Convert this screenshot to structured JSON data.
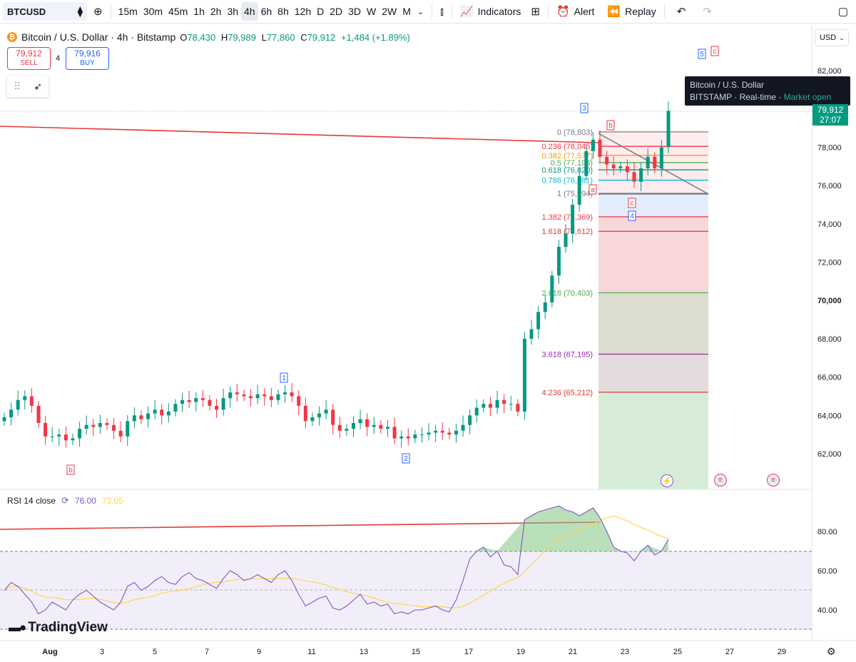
{
  "toolbar": {
    "symbol": "BTCUSD",
    "timeframes": [
      "15m",
      "30m",
      "45m",
      "1h",
      "2h",
      "3h",
      "4h",
      "6h",
      "8h",
      "12h",
      "D",
      "2D",
      "3D",
      "W",
      "2W",
      "M"
    ],
    "active_timeframe": "4h",
    "indicators_label": "Indicators",
    "alert_label": "Alert",
    "replay_label": "Replay",
    "icons": [
      "diamond-icon",
      "plus-circle-icon",
      "chevron-down-icon",
      "candles-icon",
      "indicators-icon",
      "layout-grid-icon",
      "alert-clock-icon",
      "replay-icon",
      "undo-icon",
      "redo-icon",
      "square-icon"
    ]
  },
  "legend": {
    "title": "Bitcoin / U.S. Dollar · 4h · Bitstamp",
    "o_label": "O",
    "o": "78,430",
    "h_label": "H",
    "h": "79,989",
    "l_label": "L",
    "l": "77,860",
    "c_label": "C",
    "c": "79,912",
    "change": "+1,484 (+1.89%)"
  },
  "trade": {
    "sell_price": "79,912",
    "sell_label": "SELL",
    "spread": "4",
    "buy_price": "79,916",
    "buy_label": "BUY"
  },
  "currency": "USD",
  "tooltip": {
    "title": "Bitcoin / U.S. Dollar",
    "exchange": "BITSTAMP",
    "feed": "Real-time",
    "status": "Market open"
  },
  "last_price": {
    "price": "79,912",
    "countdown": "27:07"
  },
  "rsi": {
    "label": "RSI 14 close",
    "value1": "76.00",
    "value2": "73.05"
  },
  "brand": "TradingView",
  "chart_data": {
    "type": "candlestick",
    "price_axis": [
      "82,000",
      "80,000",
      "78,000",
      "76,000",
      "74,000",
      "72,000",
      "70,000",
      "68,000",
      "66,000",
      "64,000",
      "62,000"
    ],
    "price_range": [
      60500,
      82000
    ],
    "time_axis": [
      "Aug",
      "3",
      "5",
      "7",
      "9",
      "11",
      "13",
      "15",
      "17",
      "19",
      "21",
      "23",
      "25",
      "27",
      "29"
    ],
    "rsi_axis": [
      "80.00",
      "60.00",
      "40.00"
    ],
    "fib_levels": [
      {
        "label": "0 (78,803)",
        "value": 78803,
        "color": "#787b86"
      },
      {
        "label": "0.236 (78,045)",
        "value": 78045,
        "color": "#f23645"
      },
      {
        "label": "0.382 (77,577)",
        "value": 77577,
        "color": "#ff9800"
      },
      {
        "label": "0.5 (77,198)",
        "value": 77198,
        "color": "#4caf50"
      },
      {
        "label": "0.618 (76,820)",
        "value": 76820,
        "color": "#089981"
      },
      {
        "label": "0.786 (76,281)",
        "value": 76281,
        "color": "#00bcd4"
      },
      {
        "label": "1 (75,594)",
        "value": 75594,
        "color": "#787b86"
      },
      {
        "label": "1.382 (74,369)",
        "value": 74369,
        "color": "#f23645"
      },
      {
        "label": "1.618 (73,612)",
        "value": 73612,
        "color": "#e53935"
      },
      {
        "label": "2.618 (70,403)",
        "value": 70403,
        "color": "#4caf50"
      },
      {
        "label": "3.618 (67,195)",
        "value": 67195,
        "color": "#9c27b0"
      },
      {
        "label": "4.236 (65,212)",
        "value": 65212,
        "color": "#e53935"
      }
    ],
    "wave_labels": [
      "b",
      "1",
      "2",
      "3",
      "a",
      "b",
      "c",
      "4",
      "5",
      "c"
    ],
    "prices": [
      63900,
      64300,
      64800,
      65000,
      64500,
      63600,
      62900,
      62900,
      63000,
      62700,
      62800,
      63300,
      63500,
      63400,
      63600,
      63500,
      63200,
      62900,
      63700,
      64000,
      63800,
      64100,
      64300,
      64000,
      64200,
      64600,
      64800,
      64700,
      64900,
      64800,
      64500,
      64300,
      64900,
      65200,
      65100,
      65000,
      64900,
      65100,
      65000,
      64800,
      65100,
      65200,
      65000,
      64500,
      63700,
      63900,
      64100,
      64300,
      63500,
      63200,
      63300,
      63600,
      63800,
      63400,
      63500,
      63300,
      63400,
      62800,
      62900,
      62800,
      63000,
      63000,
      63100,
      63200,
      63100,
      63000,
      63200,
      63500,
      64000,
      64400,
      64600,
      64400,
      64800,
      64600,
      64600,
      64200,
      68000,
      68500,
      69400,
      69900,
      71300,
      72800,
      73500,
      75000,
      76500,
      77800,
      78400,
      77500,
      77100,
      76900,
      77000,
      76700,
      76200,
      76900,
      77500,
      76900,
      78000,
      79900
    ],
    "rsi_values": [
      50,
      54,
      52,
      48,
      44,
      38,
      40,
      44,
      42,
      40,
      45,
      48,
      50,
      47,
      44,
      42,
      40,
      44,
      52,
      54,
      50,
      52,
      55,
      57,
      54,
      53,
      57,
      59,
      56,
      55,
      53,
      51,
      56,
      60,
      58,
      55,
      56,
      58,
      56,
      54,
      58,
      60,
      55,
      48,
      42,
      44,
      46,
      47,
      41,
      40,
      42,
      45,
      48,
      43,
      44,
      42,
      43,
      38,
      39,
      38,
      40,
      40,
      41,
      42,
      40,
      39,
      45,
      55,
      66,
      70,
      72,
      67,
      70,
      63,
      62,
      58,
      86,
      88,
      90,
      91,
      92,
      93,
      91,
      90,
      88,
      90,
      92,
      87,
      80,
      72,
      70,
      69,
      65,
      70,
      73,
      68,
      70,
      76
    ]
  }
}
